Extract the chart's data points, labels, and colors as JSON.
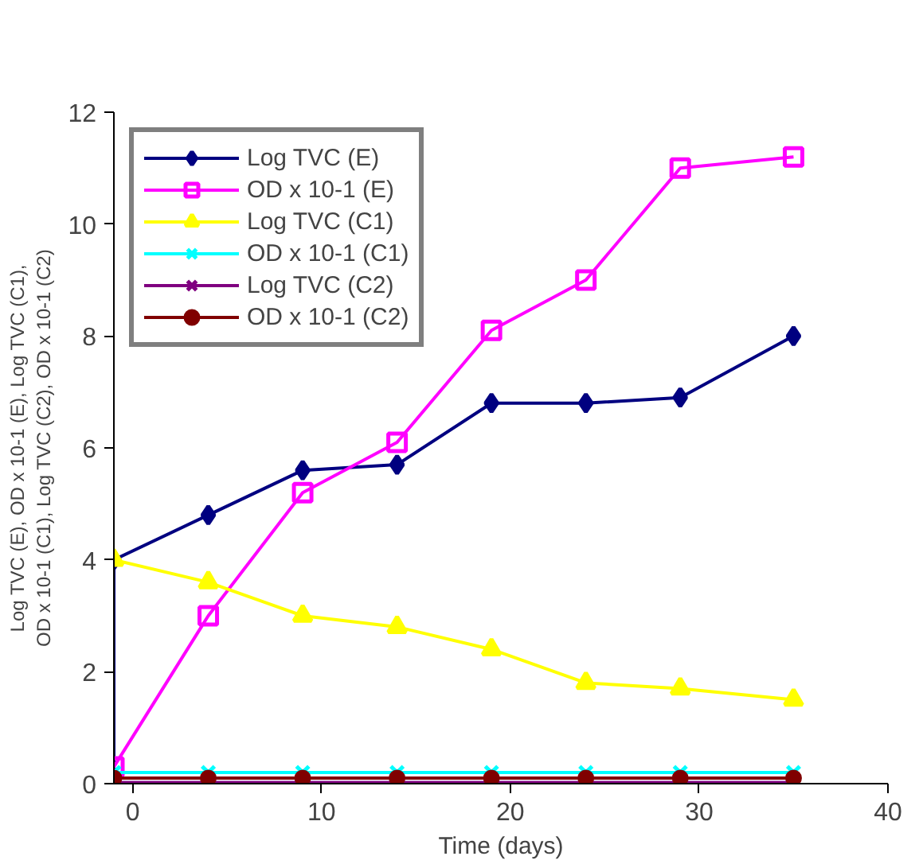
{
  "chart_data": {
    "type": "line",
    "xlabel": "Time (days)",
    "ylabel": "Log TVC (E), OD x 10-1 (E), Log TVC (C1),\nOD x 10-1 (C1), Log TVC (C2), OD x 10-1 (C2)",
    "x": [
      -1,
      4,
      9,
      14,
      19,
      24,
      29,
      35
    ],
    "series": [
      {
        "name": "Log TVC (E)",
        "color": "#000080",
        "marker": "diamond",
        "x": [
          -1,
          -1,
          4,
          9,
          14,
          19,
          24,
          29,
          35
        ],
        "values": [
          0,
          4.0,
          4.8,
          5.6,
          5.7,
          6.8,
          6.8,
          6.9,
          8.0
        ]
      },
      {
        "name": "OD x 10-1 (E)",
        "color": "#ff00ff",
        "marker": "square",
        "values": [
          0.3,
          3.0,
          5.2,
          6.1,
          8.1,
          9.0,
          11.0,
          11.2
        ]
      },
      {
        "name": "Log TVC (C1)",
        "color": "#ffff00",
        "marker": "triangle",
        "values": [
          4.0,
          3.6,
          3.0,
          2.8,
          2.4,
          1.8,
          1.7,
          1.5
        ]
      },
      {
        "name": "OD x 10-1 (C1)",
        "color": "#00ffff",
        "marker": "cross",
        "values": [
          0.2,
          0.2,
          0.2,
          0.2,
          0.2,
          0.2,
          0.2,
          0.2
        ]
      },
      {
        "name": "Log TVC (C2)",
        "color": "#800080",
        "marker": "cross",
        "values": [
          0.02,
          0.02,
          0.02,
          0.02,
          0.02,
          0.02,
          0.02,
          0.02
        ]
      },
      {
        "name": "OD x 10-1 (C2)",
        "color": "#800000",
        "marker": "circle",
        "values": [
          0.1,
          0.1,
          0.1,
          0.1,
          0.1,
          0.1,
          0.1,
          0.1
        ]
      }
    ],
    "xlim": [
      -1,
      40
    ],
    "xticks": [
      0,
      10,
      20,
      30,
      40
    ],
    "ylim": [
      0,
      12
    ],
    "yticks": [
      0,
      2,
      4,
      6,
      8,
      10,
      12
    ],
    "grid": false,
    "legend": "top left",
    "line_style": "solid"
  }
}
